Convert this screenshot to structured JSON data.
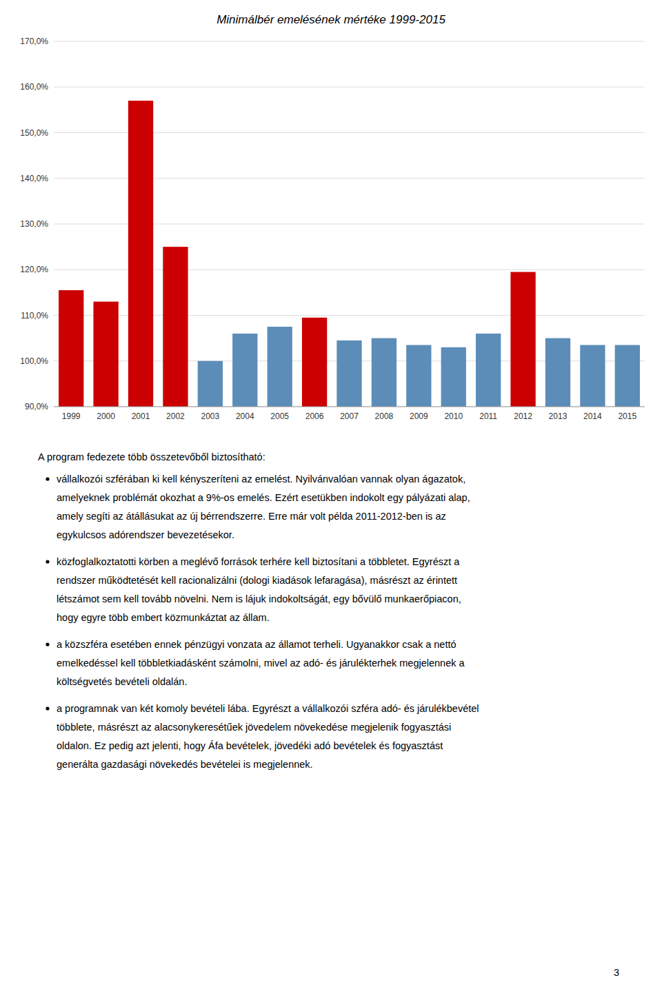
{
  "chart_data": {
    "type": "bar",
    "title": "Minimálbér emelésének mértéke 1999-2015",
    "categories": [
      "1999",
      "2000",
      "2001",
      "2002",
      "2003",
      "2004",
      "2005",
      "2006",
      "2007",
      "2008",
      "2009",
      "2010",
      "2011",
      "2012",
      "2013",
      "2014",
      "2015"
    ],
    "values": [
      115.5,
      113.0,
      157.0,
      125.0,
      100.0,
      106.0,
      107.5,
      109.5,
      104.5,
      105.0,
      103.5,
      103.0,
      106.0,
      119.5,
      105.0,
      103.5,
      103.5
    ],
    "colors": [
      "#cc0000",
      "#cc0000",
      "#cc0000",
      "#cc0000",
      "#5b8db8",
      "#5b8db8",
      "#5b8db8",
      "#cc0000",
      "#5b8db8",
      "#5b8db8",
      "#5b8db8",
      "#5b8db8",
      "#5b8db8",
      "#cc0000",
      "#5b8db8",
      "#5b8db8",
      "#5b8db8"
    ],
    "ylim": [
      90.0,
      170.0
    ],
    "yticks": [
      {
        "value": 90.0,
        "label": "90,0%"
      },
      {
        "value": 100.0,
        "label": "100,0%"
      },
      {
        "value": 110.0,
        "label": "110,0%"
      },
      {
        "value": 120.0,
        "label": "120,0%"
      },
      {
        "value": 130.0,
        "label": "130,0%"
      },
      {
        "value": 140.0,
        "label": "140,0%"
      },
      {
        "value": 150.0,
        "label": "150,0%"
      },
      {
        "value": 160.0,
        "label": "160,0%"
      },
      {
        "value": 170.0,
        "label": "170,0%"
      }
    ],
    "grid": true
  },
  "header": "A program fedezete több összetevőből biztosítható:",
  "bullets": [
    [
      "vállalkozói szférában ki kell kényszeríteni az emelést. Nyilvánvalóan vannak olyan ágazatok,",
      "amelyeknek problémát okozhat a 9%-os emelés. Ezért esetükben indokolt egy pályázati alap,",
      "amely segíti az átállásukat az új bérrendszerre. Erre már volt példa 2011-2012-ben is az",
      "egykulcsos adórendszer bevezetésekor."
    ],
    [
      "közfoglalkoztatotti körben a meglévő források terhére kell biztosítani a többletet. Egyrészt a",
      "rendszer működtetését kell racionalizálni (dologi kiadások lefaragása), másrészt az érintett",
      "létszámot sem kell tovább növelni. Nem is lájuk indokoltságát, egy bővülő munkaerőpiacon,",
      "hogy egyre több embert közmunkáztat az állam."
    ],
    [
      "a közszféra esetében ennek pénzügyi vonzata az államot terheli. Ugyanakkor csak a nettó",
      "emelkedéssel kell többletkiadásként számolni, mivel az adó- és járulékterhek megjelennek a",
      "költségvetés bevételi oldalán."
    ],
    [
      "a programnak van két komoly bevételi lába. Egyrészt a vállalkozói szféra adó- és járulékbevétel",
      "többlete, másrészt az alacsonykeresétűek jövedelem növekedése megjelenik fogyasztási",
      "oldalon. Ez pedig azt jelenti, hogy Áfa bevételek, jövedéki adó bevételek és fogyasztást",
      "generálta gazdasági növekedés bevételei is megjelennek."
    ]
  ],
  "page_number": "3"
}
